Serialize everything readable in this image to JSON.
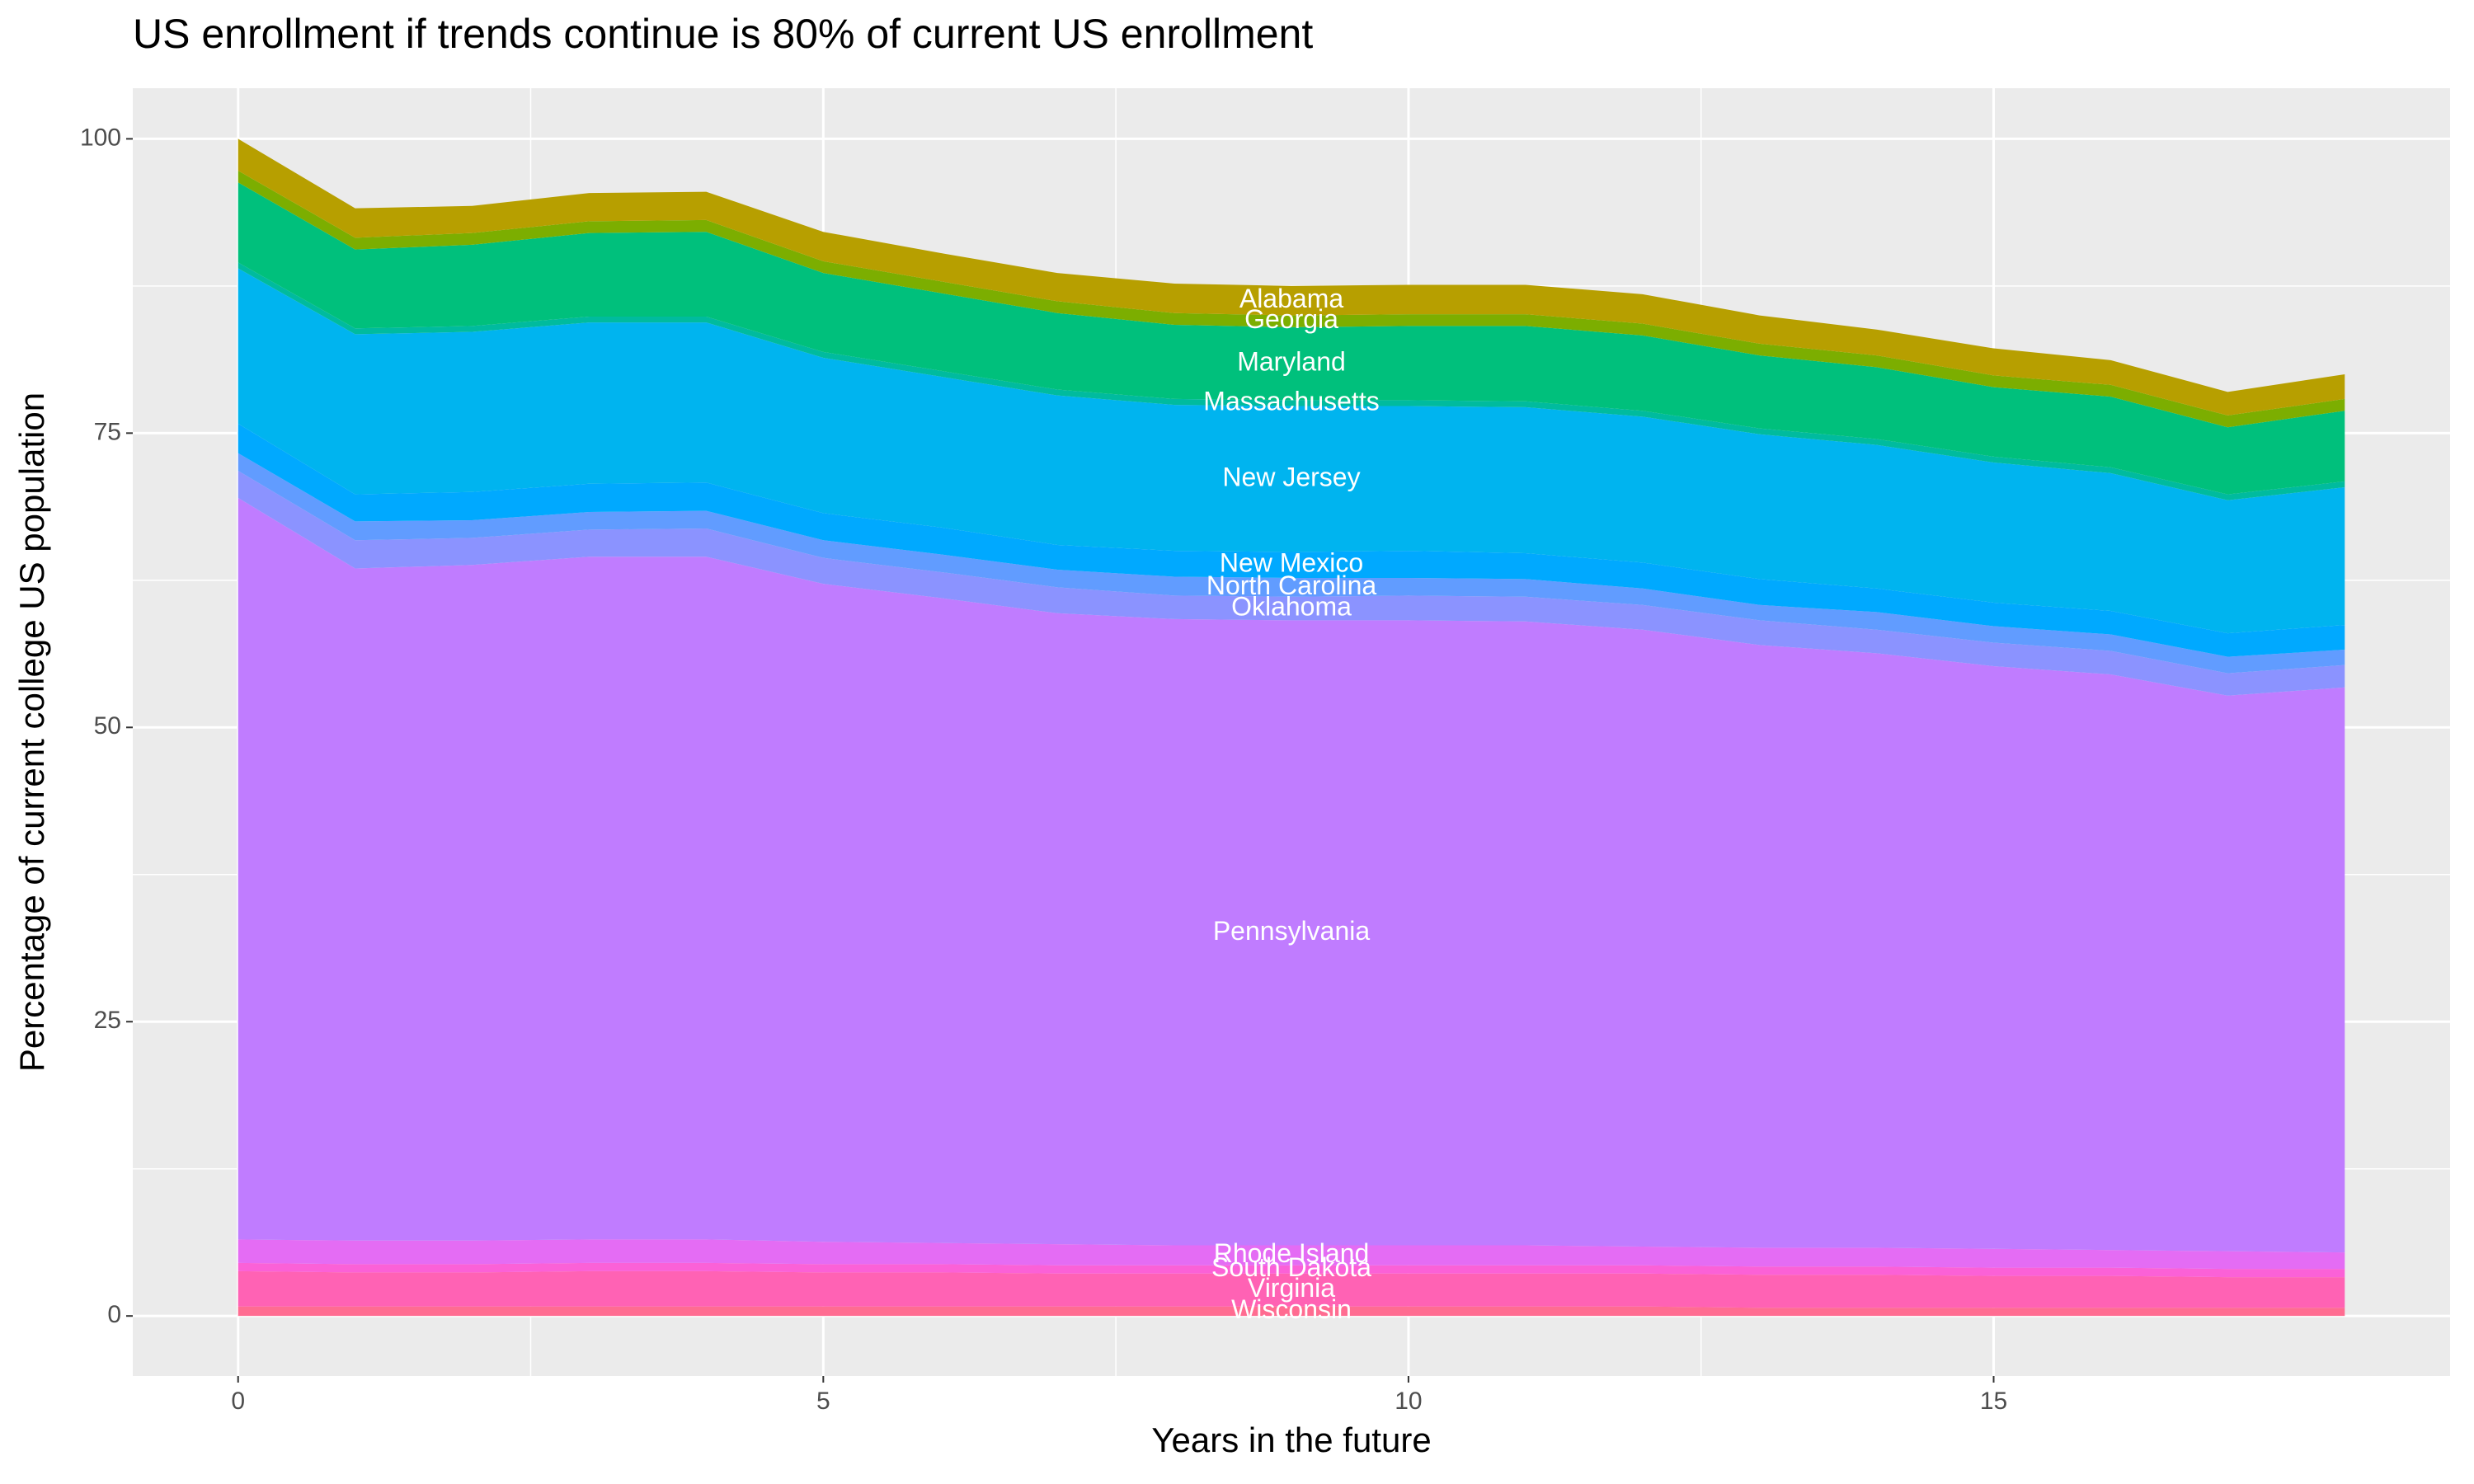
{
  "chart_data": {
    "type": "stacked_area",
    "title": "US enrollment if trends continue is 80% of current US enrollment",
    "x_label": "Years in the future",
    "y_label": "Percentage of current college US population",
    "x": [
      0,
      1,
      2,
      3,
      4,
      5,
      6,
      7,
      8,
      9,
      10,
      11,
      12,
      13,
      14,
      15,
      16,
      17,
      18
    ],
    "series": [
      {
        "name": "Alabama",
        "color": "#b79f00",
        "values": [
          2.7,
          2.5,
          2.3,
          2.4,
          2.4,
          2.5,
          2.4,
          2.4,
          2.5,
          2.5,
          2.5,
          2.5,
          2.5,
          2.4,
          2.2,
          2.3,
          2.1,
          2.0,
          2.1
        ]
      },
      {
        "name": "Georgia",
        "color": "#7cae00",
        "values": [
          1.0,
          1.0,
          1.0,
          1.0,
          1.0,
          1.0,
          1.0,
          1.0,
          1.0,
          1.0,
          1.0,
          1.0,
          1.0,
          1.0,
          1.0,
          1.0,
          1.0,
          1.0,
          1.0
        ]
      },
      {
        "name": "Maryland",
        "color": "#00c07c",
        "values": [
          6.8,
          6.7,
          6.9,
          7.1,
          7.2,
          6.7,
          6.6,
          6.5,
          6.3,
          6.2,
          6.3,
          6.4,
          6.4,
          6.2,
          6.1,
          5.9,
          6.0,
          5.7,
          6.0
        ]
      },
      {
        "name": "Massachusetts",
        "color": "#00bb9e",
        "values": [
          0.5,
          0.5,
          0.5,
          0.5,
          0.5,
          0.5,
          0.5,
          0.5,
          0.5,
          0.5,
          0.5,
          0.5,
          0.5,
          0.5,
          0.5,
          0.5,
          0.5,
          0.5,
          0.5
        ]
      },
      {
        "name": "New Jersey",
        "color": "#00b4ef",
        "values": [
          13.2,
          13.6,
          13.6,
          13.7,
          13.6,
          13.2,
          12.8,
          12.7,
          12.4,
          12.4,
          12.3,
          12.4,
          12.4,
          12.3,
          12.2,
          11.9,
          11.7,
          11.3,
          11.7
        ]
      },
      {
        "name": "New Mexico",
        "color": "#00a9ff",
        "values": [
          2.5,
          2.3,
          2.4,
          2.4,
          2.4,
          2.3,
          2.3,
          2.1,
          2.2,
          2.2,
          2.3,
          2.2,
          2.2,
          2.2,
          2.0,
          2.0,
          2.0,
          2.0,
          2.1
        ]
      },
      {
        "name": "North Carolina",
        "color": "#619cff",
        "values": [
          1.5,
          1.6,
          1.5,
          1.5,
          1.5,
          1.5,
          1.5,
          1.5,
          1.6,
          1.6,
          1.5,
          1.5,
          1.4,
          1.3,
          1.5,
          1.4,
          1.4,
          1.4,
          1.3
        ]
      },
      {
        "name": "Oklahoma",
        "color": "#8b93ff",
        "values": [
          2.3,
          2.4,
          2.3,
          2.3,
          2.4,
          2.2,
          2.2,
          2.2,
          2.0,
          2.0,
          2.1,
          2.1,
          2.1,
          2.1,
          2.0,
          2.0,
          2.0,
          1.9,
          1.9
        ]
      },
      {
        "name": "Pennsylvania",
        "color": "#c07cff",
        "values": [
          63.0,
          57.1,
          57.4,
          58.0,
          58.0,
          55.9,
          54.8,
          53.6,
          53.2,
          53.1,
          53.1,
          53.0,
          52.4,
          51.2,
          50.5,
          49.5,
          48.9,
          47.2,
          48.0
        ]
      },
      {
        "name": "Rhode Island",
        "color": "#e46cf4",
        "values": [
          2.0,
          2.0,
          2.0,
          2.0,
          2.0,
          1.9,
          1.8,
          1.8,
          1.7,
          1.7,
          1.7,
          1.7,
          1.6,
          1.6,
          1.6,
          1.6,
          1.5,
          1.5,
          1.4
        ]
      },
      {
        "name": "South Dakota",
        "color": "#fb61d7",
        "values": [
          0.7,
          0.7,
          0.7,
          0.7,
          0.7,
          0.7,
          0.7,
          0.7,
          0.7,
          0.7,
          0.7,
          0.7,
          0.7,
          0.7,
          0.7,
          0.7,
          0.7,
          0.7,
          0.7
        ]
      },
      {
        "name": "Virginia",
        "color": "#ff62b4",
        "values": [
          3.0,
          2.9,
          2.9,
          3.0,
          3.0,
          2.9,
          2.9,
          2.8,
          2.8,
          2.8,
          2.8,
          2.8,
          2.8,
          2.8,
          2.8,
          2.7,
          2.7,
          2.6,
          2.6
        ]
      },
      {
        "name": "Wisconsin",
        "color": "#ff6c91",
        "values": [
          0.8,
          0.8,
          0.8,
          0.8,
          0.8,
          0.8,
          0.8,
          0.8,
          0.8,
          0.8,
          0.8,
          0.8,
          0.8,
          0.7,
          0.7,
          0.7,
          0.7,
          0.7,
          0.7
        ]
      }
    ],
    "xlim": [
      -0.9,
      18.9
    ],
    "ylim": [
      -5.1,
      104.3
    ],
    "xticks": [
      0,
      5,
      10,
      15
    ],
    "yticks": [
      0,
      25,
      50,
      75,
      100
    ],
    "grid": true
  }
}
